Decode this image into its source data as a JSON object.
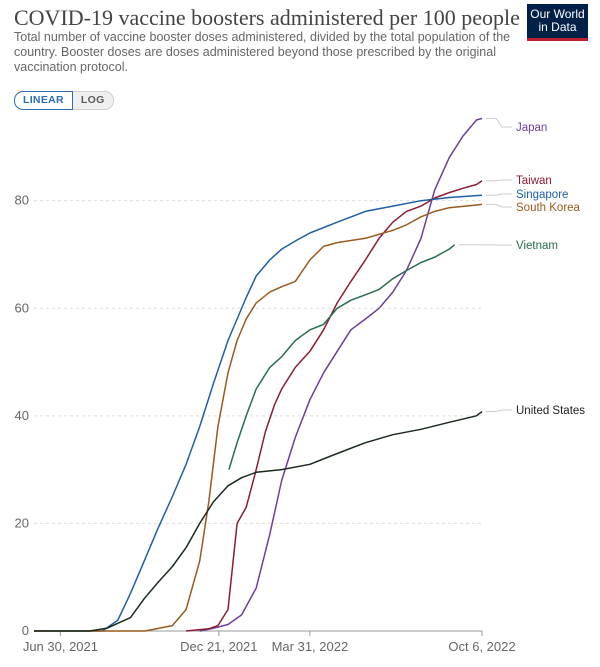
{
  "header": {
    "title": "COVID-19 vaccine boosters administered per 100 people",
    "subtitle": "Total number of vaccine booster doses administered, divided by the total population of the country. Booster doses are doses administered beyond those prescribed by the original vaccination protocol.",
    "logo_line1": "Our World",
    "logo_line2": "in Data"
  },
  "controls": {
    "linear_label": "LINEAR",
    "log_label": "LOG"
  },
  "chart_data": {
    "type": "line",
    "x_axis_type": "date",
    "xlim": [
      "2021-06-01",
      "2022-10-06"
    ],
    "ylim": [
      0,
      95
    ],
    "y_ticks": [
      0,
      20,
      40,
      60,
      80
    ],
    "x_ticks": [
      {
        "date": "2021-06-30",
        "label": "Jun 30, 2021"
      },
      {
        "date": "2021-12-21",
        "label": "Dec 21, 2021"
      },
      {
        "date": "2022-03-31",
        "label": "Mar 31, 2022"
      },
      {
        "date": "2022-10-06",
        "label": "Oct 6, 2022"
      }
    ],
    "grid": "horizontal",
    "legend": "right-end labels",
    "series": [
      {
        "name": "Japan",
        "color": "#6c3e9b",
        "points": [
          [
            "2021-11-30",
            0
          ],
          [
            "2021-12-15",
            0.5
          ],
          [
            "2021-12-31",
            1.2
          ],
          [
            "2022-01-15",
            3
          ],
          [
            "2022-01-31",
            8
          ],
          [
            "2022-02-15",
            18
          ],
          [
            "2022-02-28",
            28
          ],
          [
            "2022-03-15",
            36
          ],
          [
            "2022-03-31",
            43
          ],
          [
            "2022-04-15",
            48
          ],
          [
            "2022-04-30",
            52
          ],
          [
            "2022-05-15",
            56
          ],
          [
            "2022-05-31",
            58
          ],
          [
            "2022-06-15",
            60
          ],
          [
            "2022-06-30",
            63
          ],
          [
            "2022-07-15",
            67
          ],
          [
            "2022-07-31",
            73
          ],
          [
            "2022-08-15",
            82
          ],
          [
            "2022-08-31",
            88
          ],
          [
            "2022-09-15",
            92
          ],
          [
            "2022-09-30",
            95
          ],
          [
            "2022-10-06",
            95.3
          ]
        ]
      },
      {
        "name": "Taiwan",
        "color": "#8c1c33",
        "points": [
          [
            "2021-11-15",
            0
          ],
          [
            "2021-12-10",
            0.4
          ],
          [
            "2021-12-20",
            1
          ],
          [
            "2021-12-31",
            4
          ],
          [
            "2022-01-10",
            20
          ],
          [
            "2022-01-20",
            23
          ],
          [
            "2022-01-31",
            30
          ],
          [
            "2022-02-10",
            37
          ],
          [
            "2022-02-20",
            42
          ],
          [
            "2022-02-28",
            45
          ],
          [
            "2022-03-15",
            49
          ],
          [
            "2022-03-31",
            52
          ],
          [
            "2022-04-15",
            56
          ],
          [
            "2022-04-30",
            61
          ],
          [
            "2022-05-15",
            65
          ],
          [
            "2022-05-31",
            69
          ],
          [
            "2022-06-15",
            73
          ],
          [
            "2022-06-30",
            76
          ],
          [
            "2022-07-15",
            78
          ],
          [
            "2022-07-31",
            79
          ],
          [
            "2022-08-15",
            80.5
          ],
          [
            "2022-08-31",
            81.5
          ],
          [
            "2022-09-15",
            82.3
          ],
          [
            "2022-09-30",
            83
          ],
          [
            "2022-10-06",
            83.7
          ]
        ]
      },
      {
        "name": "Singapore",
        "color": "#1f5fa8",
        "points": [
          [
            "2021-06-01",
            0
          ],
          [
            "2021-08-15",
            0
          ],
          [
            "2021-09-01",
            2
          ],
          [
            "2021-09-15",
            7
          ],
          [
            "2021-09-30",
            13
          ],
          [
            "2021-10-15",
            19
          ],
          [
            "2021-10-31",
            25
          ],
          [
            "2021-11-15",
            31
          ],
          [
            "2021-11-30",
            38
          ],
          [
            "2021-12-15",
            46
          ],
          [
            "2021-12-31",
            54
          ],
          [
            "2022-01-10",
            58
          ],
          [
            "2022-01-20",
            62
          ],
          [
            "2022-01-31",
            66
          ],
          [
            "2022-02-15",
            69
          ],
          [
            "2022-02-28",
            71
          ],
          [
            "2022-03-15",
            72.5
          ],
          [
            "2022-03-31",
            74
          ],
          [
            "2022-04-30",
            76
          ],
          [
            "2022-05-31",
            78
          ],
          [
            "2022-06-30",
            79
          ],
          [
            "2022-07-31",
            80
          ],
          [
            "2022-08-31",
            80.6
          ],
          [
            "2022-10-06",
            81
          ]
        ]
      },
      {
        "name": "South Korea",
        "color": "#9a5a1e",
        "points": [
          [
            "2021-06-01",
            0
          ],
          [
            "2021-10-01",
            0
          ],
          [
            "2021-10-31",
            1
          ],
          [
            "2021-11-15",
            4
          ],
          [
            "2021-11-30",
            13
          ],
          [
            "2021-12-10",
            24
          ],
          [
            "2021-12-20",
            38
          ],
          [
            "2021-12-31",
            48
          ],
          [
            "2022-01-10",
            54
          ],
          [
            "2022-01-20",
            58
          ],
          [
            "2022-01-31",
            61
          ],
          [
            "2022-02-15",
            63
          ],
          [
            "2022-02-28",
            64
          ],
          [
            "2022-03-15",
            65
          ],
          [
            "2022-03-31",
            69
          ],
          [
            "2022-04-15",
            71.5
          ],
          [
            "2022-04-30",
            72.2
          ],
          [
            "2022-05-31",
            73
          ],
          [
            "2022-06-30",
            74.5
          ],
          [
            "2022-07-15",
            75.5
          ],
          [
            "2022-07-31",
            77
          ],
          [
            "2022-08-15",
            78
          ],
          [
            "2022-08-31",
            78.7
          ],
          [
            "2022-09-30",
            79.2
          ],
          [
            "2022-10-06",
            79.3
          ]
        ]
      },
      {
        "name": "Vietnam",
        "color": "#286d4b",
        "points": [
          [
            "2022-01-01",
            30
          ],
          [
            "2022-01-10",
            35
          ],
          [
            "2022-01-20",
            40
          ],
          [
            "2022-01-31",
            45
          ],
          [
            "2022-02-15",
            49
          ],
          [
            "2022-02-28",
            51
          ],
          [
            "2022-03-15",
            54
          ],
          [
            "2022-03-31",
            56
          ],
          [
            "2022-04-15",
            57
          ],
          [
            "2022-04-30",
            60
          ],
          [
            "2022-05-15",
            61.5
          ],
          [
            "2022-05-31",
            62.5
          ],
          [
            "2022-06-15",
            63.5
          ],
          [
            "2022-06-30",
            65.5
          ],
          [
            "2022-07-15",
            67
          ],
          [
            "2022-07-31",
            68.5
          ],
          [
            "2022-08-15",
            69.5
          ],
          [
            "2022-08-31",
            71
          ],
          [
            "2022-09-06",
            71.8
          ]
        ]
      },
      {
        "name": "United States",
        "color": "#1b2b1b",
        "points": [
          [
            "2021-06-01",
            0
          ],
          [
            "2021-08-01",
            0
          ],
          [
            "2021-08-20",
            0.5
          ],
          [
            "2021-09-15",
            2.5
          ],
          [
            "2021-09-30",
            6
          ],
          [
            "2021-10-15",
            9
          ],
          [
            "2021-10-31",
            12
          ],
          [
            "2021-11-15",
            15.5
          ],
          [
            "2021-11-30",
            20
          ],
          [
            "2021-12-15",
            24
          ],
          [
            "2021-12-31",
            27
          ],
          [
            "2022-01-15",
            28.5
          ],
          [
            "2022-01-31",
            29.5
          ],
          [
            "2022-02-28",
            30
          ],
          [
            "2022-03-31",
            31
          ],
          [
            "2022-04-30",
            33
          ],
          [
            "2022-05-31",
            35
          ],
          [
            "2022-06-30",
            36.5
          ],
          [
            "2022-07-31",
            37.5
          ],
          [
            "2022-08-31",
            38.8
          ],
          [
            "2022-09-30",
            40
          ],
          [
            "2022-10-06",
            40.8
          ]
        ]
      }
    ]
  }
}
